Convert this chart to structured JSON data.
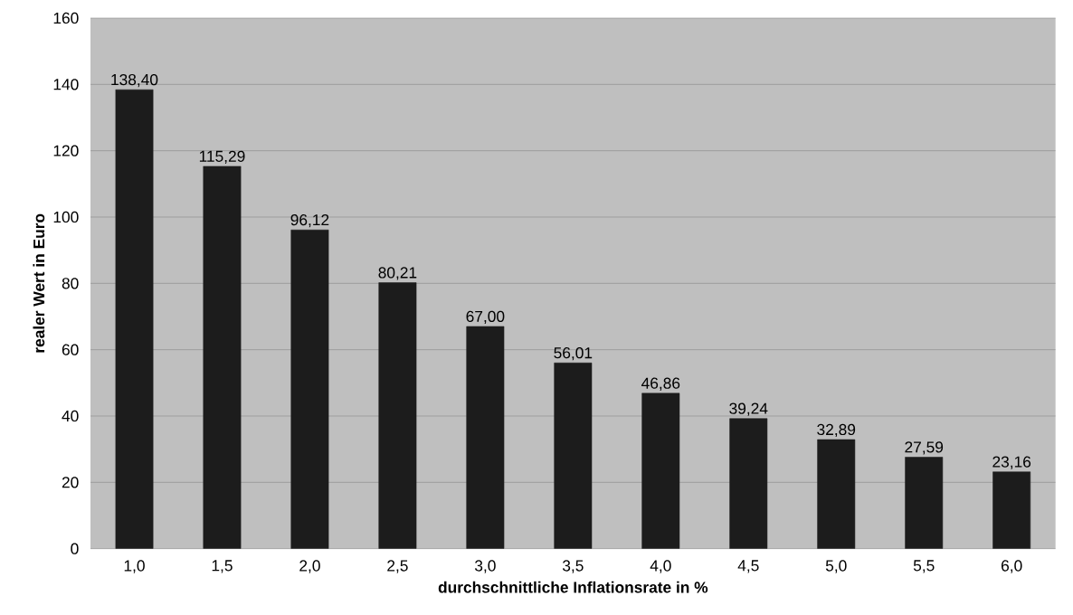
{
  "chart_data": {
    "type": "bar",
    "xlabel": "durchschnittliche Inflationsrate in %",
    "ylabel": "realer Wert in Euro",
    "categories": [
      "1,0",
      "1,5",
      "2,0",
      "2,5",
      "3,0",
      "3,5",
      "4,0",
      "4,5",
      "5,0",
      "5,5",
      "6,0"
    ],
    "values": [
      138.4,
      115.29,
      96.12,
      80.21,
      67.0,
      56.01,
      46.86,
      39.24,
      32.89,
      27.59,
      23.16
    ],
    "value_labels": [
      "138,40",
      "115,29",
      "96,12",
      "80,21",
      "67,00",
      "56,01",
      "46,86",
      "39,24",
      "32,89",
      "27,59",
      "23,16"
    ],
    "color": "#1c1c1c",
    "ylim": [
      0,
      160
    ],
    "yticks": [
      0,
      20,
      40,
      60,
      80,
      100,
      120,
      140,
      160
    ],
    "grid": "y"
  }
}
